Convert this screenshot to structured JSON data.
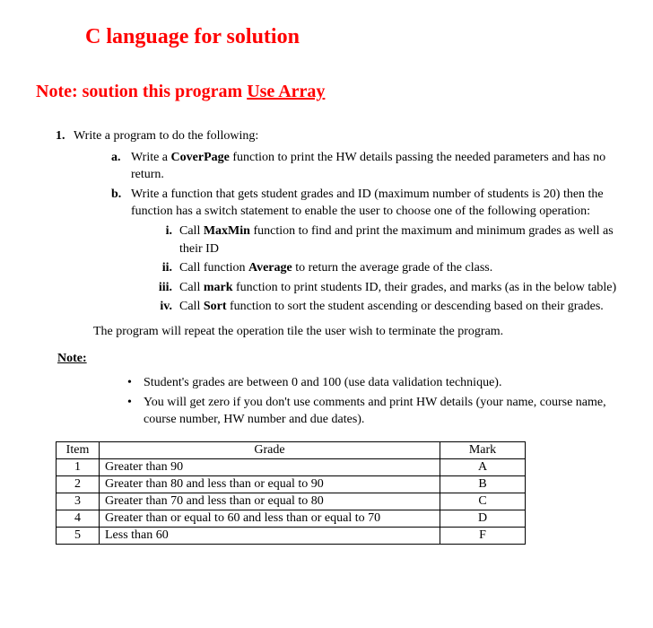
{
  "title": "C language for solution",
  "note_prefix": "Note:  ",
  "note_mid": "soution this program ",
  "note_underline": "Use Array",
  "q1": {
    "num": "1.",
    "text": "Write a program to do the following:"
  },
  "a": {
    "label": "a.",
    "text1": "Write a ",
    "bold": "CoverPage",
    "text2": " function to print the HW details passing the needed parameters and has no return."
  },
  "b": {
    "label": "b.",
    "text": "Write a function that gets student grades and ID (maximum number of students is 20) then the function has a switch statement to enable the user to choose one of the following operation:"
  },
  "i": {
    "label": "i.",
    "t1": "Call ",
    "b": "MaxMin",
    "t2": " function to find and print the maximum and minimum grades as well as their ID"
  },
  "ii": {
    "label": "ii.",
    "t1": "Call function ",
    "b": "Average",
    "t2": " to return the average grade of the class."
  },
  "iii": {
    "label": "iii.",
    "t1": "Call ",
    "b": "mark",
    "t2": " function to print students ID, their grades, and marks (as in the below table)"
  },
  "iv": {
    "label": "iv.",
    "t1": "Call ",
    "b": "Sort",
    "t2": " function to sort the student ascending or descending based on their grades."
  },
  "repeat": "The program will repeat the operation tile the user wish to terminate the program.",
  "note2": " Note:",
  "bullet1": "Student's grades are between 0 and 100 (use data validation technique).",
  "bullet2": "You will get zero if you don't use comments and print HW details (your name, course name, course number, HW number and due dates).",
  "table": {
    "headers": {
      "item": "Item",
      "grade": "Grade",
      "mark": "Mark"
    },
    "rows": [
      {
        "item": "1",
        "grade": "Greater than 90",
        "mark": "A"
      },
      {
        "item": "2",
        "grade": "Greater than 80 and less than or equal to 90",
        "mark": "B"
      },
      {
        "item": "3",
        "grade": "Greater than 70 and less than or equal to 80",
        "mark": "C"
      },
      {
        "item": "4",
        "grade": "Greater than or equal to 60 and less than or equal to 70",
        "mark": "D"
      },
      {
        "item": "5",
        "grade": "Less than 60",
        "mark": "F"
      }
    ]
  }
}
